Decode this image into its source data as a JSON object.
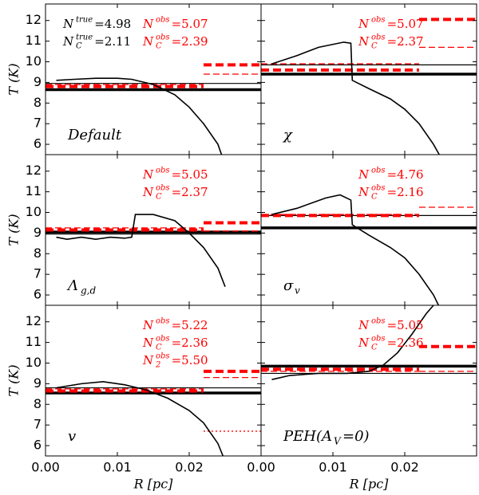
{
  "chart_data": [
    {
      "type": "line",
      "ylabel": "T (K)",
      "xlim": [
        0,
        0.03
      ],
      "ylim": [
        5.5,
        12.8
      ],
      "yticks": [
        6,
        7,
        8,
        9,
        10,
        11,
        12
      ],
      "xticks": [
        0,
        0.01,
        0.02
      ],
      "label": {
        "text": "Default"
      },
      "series": [
        {
          "color": "#000000",
          "x": [
            0.0015,
            0.004,
            0.007,
            0.01,
            0.012,
            0.015,
            0.018,
            0.02,
            0.022,
            0.024,
            0.0245
          ],
          "values": [
            9.1,
            9.15,
            9.2,
            9.2,
            9.15,
            8.9,
            8.4,
            7.8,
            7.0,
            6.0,
            5.5
          ]
        }
      ],
      "hlines": [
        {
          "value": 8.65,
          "x": [
            0,
            0.03
          ],
          "color": "#000000",
          "style": "thick"
        },
        {
          "value": 8.95,
          "x": [
            0,
            0.03
          ],
          "color": "#000000",
          "style": "thin"
        },
        {
          "value": 8.8,
          "x": [
            0,
            0.022
          ],
          "color": "#ff0000",
          "style": "thick-dashed"
        },
        {
          "value": 8.9,
          "x": [
            0,
            0.022
          ],
          "color": "#ff0000",
          "style": "thin-dashed"
        },
        {
          "value": 9.85,
          "x": [
            0.022,
            0.03
          ],
          "color": "#ff0000",
          "style": "thick-dashed"
        },
        {
          "value": 9.4,
          "x": [
            0.022,
            0.03
          ],
          "color": "#ff0000",
          "style": "thin-dashed"
        }
      ],
      "annotations": [
        {
          "symbol": "N",
          "sup": "true",
          "text": "=4.98",
          "color": "#000000"
        },
        {
          "symbol": "N",
          "sup": "true",
          "sub": "C",
          "text": "=2.11",
          "color": "#000000"
        },
        {
          "symbol": "N",
          "sup": "obs",
          "text": "=5.07",
          "color": "#ff0000"
        },
        {
          "symbol": "N",
          "sup": "obs",
          "sub": "C",
          "text": "=2.39",
          "color": "#ff0000"
        }
      ]
    },
    {
      "type": "line",
      "xlim": [
        0,
        0.03
      ],
      "ylim": [
        5.5,
        12.8
      ],
      "yticks": [
        6,
        7,
        8,
        9,
        10,
        11,
        12
      ],
      "xticks": [
        0,
        0.01,
        0.02
      ],
      "label": {
        "text": "χ"
      },
      "series": [
        {
          "color": "#000000",
          "x": [
            0.0015,
            0.005,
            0.008,
            0.0115,
            0.0125,
            0.0127,
            0.015,
            0.018,
            0.02,
            0.022,
            0.024,
            0.0248
          ],
          "values": [
            9.9,
            10.3,
            10.7,
            10.95,
            10.9,
            9.1,
            8.7,
            8.2,
            7.7,
            7.0,
            6.0,
            5.5
          ]
        }
      ],
      "hlines": [
        {
          "value": 9.4,
          "x": [
            0,
            0.03
          ],
          "color": "#000000",
          "style": "thick"
        },
        {
          "value": 9.85,
          "x": [
            0,
            0.03
          ],
          "color": "#000000",
          "style": "thin"
        },
        {
          "value": 9.6,
          "x": [
            0,
            0.022
          ],
          "color": "#ff0000",
          "style": "thick-dashed"
        },
        {
          "value": 9.9,
          "x": [
            0,
            0.022
          ],
          "color": "#ff0000",
          "style": "thin-dashed"
        },
        {
          "value": 12.05,
          "x": [
            0.022,
            0.03
          ],
          "color": "#ff0000",
          "style": "thick-dashed"
        },
        {
          "value": 10.7,
          "x": [
            0.022,
            0.03
          ],
          "color": "#ff0000",
          "style": "thin-dashed"
        }
      ],
      "annotations": [
        {
          "symbol": "N",
          "sup": "obs",
          "text": "=5.07",
          "color": "#ff0000"
        },
        {
          "symbol": "N",
          "sup": "obs",
          "sub": "C",
          "text": "=2.37",
          "color": "#ff0000"
        }
      ]
    },
    {
      "type": "line",
      "ylabel": "T (K)",
      "xlim": [
        0,
        0.03
      ],
      "ylim": [
        5.5,
        12.8
      ],
      "yticks": [
        6,
        7,
        8,
        9,
        10,
        11,
        12
      ],
      "xticks": [
        0,
        0.01,
        0.02
      ],
      "label": {
        "text": "Λ",
        "sub": "g,d"
      },
      "series": [
        {
          "color": "#000000",
          "x": [
            0.0015,
            0.003,
            0.005,
            0.007,
            0.009,
            0.011,
            0.012,
            0.0125,
            0.015,
            0.018,
            0.02,
            0.022,
            0.024,
            0.025
          ],
          "values": [
            8.8,
            8.7,
            8.8,
            8.7,
            8.8,
            8.75,
            8.8,
            9.9,
            9.9,
            9.6,
            9.0,
            8.3,
            7.3,
            6.4
          ]
        }
      ],
      "hlines": [
        {
          "value": 9.05,
          "x": [
            0,
            0.03
          ],
          "color": "#000000",
          "style": "thick"
        },
        {
          "value": 8.95,
          "x": [
            0,
            0.03
          ],
          "color": "#000000",
          "style": "thin"
        },
        {
          "value": 9.15,
          "x": [
            0,
            0.022
          ],
          "color": "#ff0000",
          "style": "thick-dashed"
        },
        {
          "value": 9.25,
          "x": [
            0,
            0.022
          ],
          "color": "#ff0000",
          "style": "thin-dashed"
        },
        {
          "value": 9.5,
          "x": [
            0.022,
            0.03
          ],
          "color": "#ff0000",
          "style": "thick-dashed"
        },
        {
          "value": 9.1,
          "x": [
            0.022,
            0.03
          ],
          "color": "#ff0000",
          "style": "thin-dashed"
        }
      ],
      "annotations": [
        {
          "symbol": "N",
          "sup": "obs",
          "text": "=5.05",
          "color": "#ff0000"
        },
        {
          "symbol": "N",
          "sup": "obs",
          "sub": "C",
          "text": "=2.37",
          "color": "#ff0000"
        }
      ]
    },
    {
      "type": "line",
      "xlim": [
        0,
        0.03
      ],
      "ylim": [
        5.5,
        12.8
      ],
      "yticks": [
        6,
        7,
        8,
        9,
        10,
        11,
        12
      ],
      "xticks": [
        0,
        0.01,
        0.02
      ],
      "label": {
        "text": "σ",
        "sub": "v"
      },
      "series": [
        {
          "color": "#000000",
          "x": [
            0.0015,
            0.005,
            0.009,
            0.011,
            0.0125,
            0.0127,
            0.015,
            0.018,
            0.02,
            0.022,
            0.024,
            0.0247
          ],
          "values": [
            9.9,
            10.2,
            10.7,
            10.85,
            10.6,
            9.4,
            8.9,
            8.3,
            7.8,
            7.0,
            6.0,
            5.5
          ]
        }
      ],
      "hlines": [
        {
          "value": 9.25,
          "x": [
            0,
            0.03
          ],
          "color": "#000000",
          "style": "thick"
        },
        {
          "value": 9.85,
          "x": [
            0,
            0.03
          ],
          "color": "#000000",
          "style": "thin"
        },
        {
          "value": 9.85,
          "x": [
            0,
            0.022
          ],
          "color": "#ff0000",
          "style": "thick-dashed"
        },
        {
          "value": 9.9,
          "x": [
            0,
            0.022
          ],
          "color": "#ff0000",
          "style": "thin-dashed"
        },
        {
          "value": 10.25,
          "x": [
            0.022,
            0.03
          ],
          "color": "#ff0000",
          "style": "thin-dashed"
        }
      ],
      "annotations": [
        {
          "symbol": "N",
          "sup": "obs",
          "text": "=4.76",
          "color": "#ff0000"
        },
        {
          "symbol": "N",
          "sup": "obs",
          "sub": "C",
          "text": "=2.16",
          "color": "#ff0000"
        }
      ]
    },
    {
      "type": "line",
      "ylabel": "T (K)",
      "xlabel": "R [pc]",
      "xlim": [
        0,
        0.03
      ],
      "ylim": [
        5.5,
        12.8
      ],
      "yticks": [
        6,
        7,
        8,
        9,
        10,
        11,
        12
      ],
      "xticks": [
        {
          "value": 0,
          "label": "0.00"
        },
        {
          "value": 0.01,
          "label": "0.01"
        },
        {
          "value": 0.02,
          "label": "0.02"
        }
      ],
      "label": {
        "text": "v"
      },
      "series": [
        {
          "color": "#000000",
          "x": [
            0.0015,
            0.005,
            0.008,
            0.011,
            0.014,
            0.017,
            0.02,
            0.022,
            0.024,
            0.0247
          ],
          "values": [
            8.8,
            9.0,
            9.1,
            8.95,
            8.7,
            8.3,
            7.7,
            7.1,
            6.1,
            5.5
          ]
        }
      ],
      "hlines": [
        {
          "value": 8.55,
          "x": [
            0,
            0.03
          ],
          "color": "#000000",
          "style": "thick"
        },
        {
          "value": 8.8,
          "x": [
            0,
            0.03
          ],
          "color": "#000000",
          "style": "thin"
        },
        {
          "value": 8.65,
          "x": [
            0,
            0.022
          ],
          "color": "#ff0000",
          "style": "thick-dashed"
        },
        {
          "value": 8.75,
          "x": [
            0,
            0.022
          ],
          "color": "#ff0000",
          "style": "thin-dashed"
        },
        {
          "value": 9.6,
          "x": [
            0.022,
            0.03
          ],
          "color": "#ff0000",
          "style": "thick-dashed"
        },
        {
          "value": 9.3,
          "x": [
            0.022,
            0.03
          ],
          "color": "#ff0000",
          "style": "thin-dashed"
        },
        {
          "value": 6.7,
          "x": [
            0.022,
            0.03
          ],
          "color": "#ff0000",
          "style": "dotted"
        }
      ],
      "annotations": [
        {
          "symbol": "N",
          "sup": "obs",
          "text": "=5.22",
          "color": "#ff0000"
        },
        {
          "symbol": "N",
          "sup": "obs",
          "sub": "C",
          "text": "=2.36",
          "color": "#ff0000"
        },
        {
          "symbol": "N",
          "sup": "obs",
          "sub": "2",
          "text": "=5.50",
          "color": "#ff0000"
        }
      ]
    },
    {
      "type": "line",
      "xlabel": "R [pc]",
      "xlim": [
        0,
        0.03
      ],
      "ylim": [
        5.5,
        12.8
      ],
      "yticks": [
        6,
        7,
        8,
        9,
        10,
        11,
        12
      ],
      "xticks": [
        {
          "value": 0,
          "label": "0.00"
        },
        {
          "value": 0.01,
          "label": "0.01"
        },
        {
          "value": 0.02,
          "label": "0.02"
        }
      ],
      "label": {
        "text": "PEH(A",
        "sub": "V",
        "after": "=0)"
      },
      "series": [
        {
          "color": "#000000",
          "x": [
            0.0015,
            0.004,
            0.008,
            0.012,
            0.015,
            0.017,
            0.019,
            0.021,
            0.023,
            0.024
          ],
          "values": [
            9.2,
            9.4,
            9.5,
            9.5,
            9.6,
            9.9,
            10.5,
            11.4,
            12.4,
            12.8
          ]
        }
      ],
      "hlines": [
        {
          "value": 9.85,
          "x": [
            0,
            0.03
          ],
          "color": "#000000",
          "style": "thick"
        },
        {
          "value": 9.5,
          "x": [
            0,
            0.03
          ],
          "color": "#000000",
          "style": "thin"
        },
        {
          "value": 9.7,
          "x": [
            0,
            0.022
          ],
          "color": "#ff0000",
          "style": "thick-dashed"
        },
        {
          "value": 9.6,
          "x": [
            0,
            0.022
          ],
          "color": "#ff0000",
          "style": "thin-dashed"
        },
        {
          "value": 10.8,
          "x": [
            0.022,
            0.03
          ],
          "color": "#ff0000",
          "style": "thick-dashed"
        },
        {
          "value": 9.6,
          "x": [
            0.022,
            0.03
          ],
          "color": "#ff0000",
          "style": "thin-dashed"
        }
      ],
      "annotations": [
        {
          "symbol": "N",
          "sup": "obs",
          "text": "=5.05",
          "color": "#ff0000"
        },
        {
          "symbol": "N",
          "sup": "obs",
          "sub": "C",
          "text": "=2.36",
          "color": "#ff0000"
        }
      ]
    }
  ]
}
